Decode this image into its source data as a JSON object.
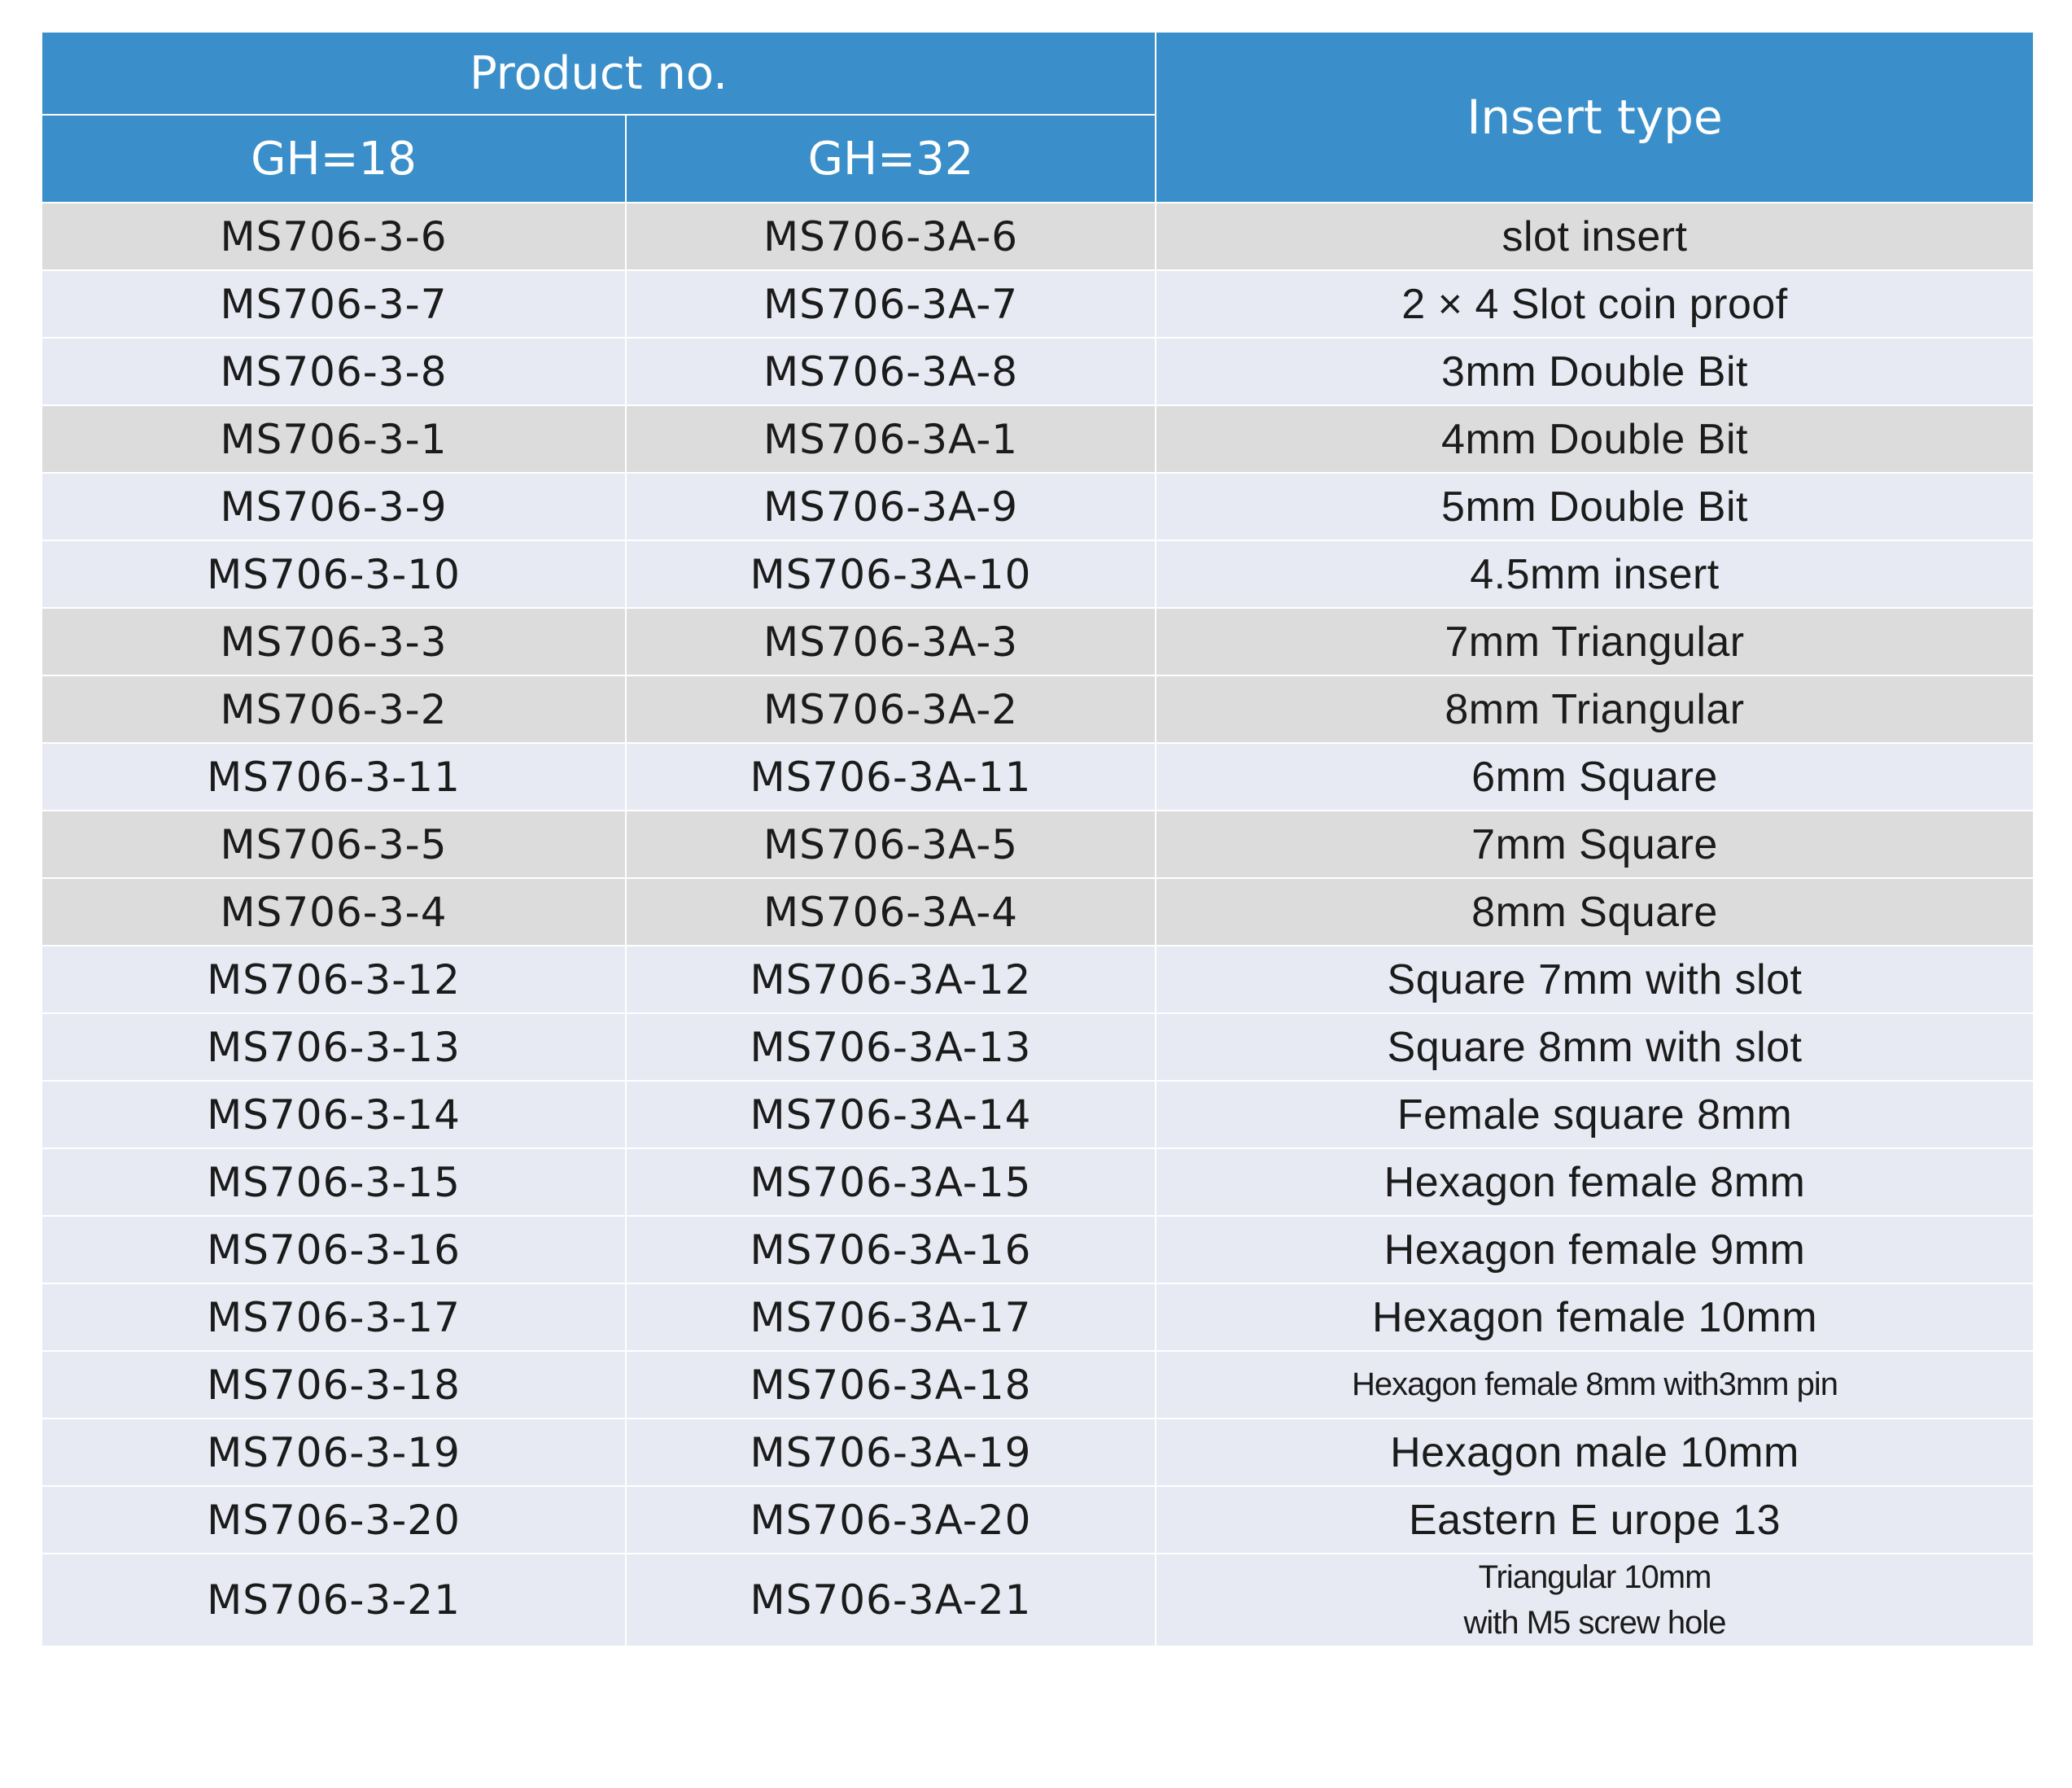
{
  "header": {
    "product_no": "Product no.",
    "insert_type": "Insert type",
    "gh18": "GH=18",
    "gh32": "GH=32"
  },
  "colors": {
    "header_bg": "#3a8fca",
    "header_text": "#ffffff",
    "row_gray": "#dcdcdc",
    "row_blue": "#e7eaf3"
  },
  "rows": [
    {
      "gh18": "MS706-3-6",
      "gh32": "MS706-3A-6",
      "insert": "slot insert",
      "shade": "gray"
    },
    {
      "gh18": "MS706-3-7",
      "gh32": "MS706-3A-7",
      "insert": "2 × 4 Slot coin proof",
      "shade": "blue"
    },
    {
      "gh18": "MS706-3-8",
      "gh32": "MS706-3A-8",
      "insert": "3mm Double Bit",
      "shade": "blue"
    },
    {
      "gh18": "MS706-3-1",
      "gh32": "MS706-3A-1",
      "insert": "4mm Double Bit",
      "shade": "gray"
    },
    {
      "gh18": "MS706-3-9",
      "gh32": "MS706-3A-9",
      "insert": "5mm Double Bit",
      "shade": "blue"
    },
    {
      "gh18": "MS706-3-10",
      "gh32": "MS706-3A-10",
      "insert": "4.5mm  insert",
      "shade": "blue"
    },
    {
      "gh18": "MS706-3-3",
      "gh32": "MS706-3A-3",
      "insert": "7mm Triangular",
      "shade": "gray"
    },
    {
      "gh18": "MS706-3-2",
      "gh32": "MS706-3A-2",
      "insert": "8mm Triangular",
      "shade": "gray"
    },
    {
      "gh18": "MS706-3-11",
      "gh32": "MS706-3A-11",
      "insert": "6mm Square",
      "shade": "blue"
    },
    {
      "gh18": "MS706-3-5",
      "gh32": "MS706-3A-5",
      "insert": "7mm Square",
      "shade": "gray"
    },
    {
      "gh18": "MS706-3-4",
      "gh32": "MS706-3A-4",
      "insert": "8mm Square",
      "shade": "gray"
    },
    {
      "gh18": "MS706-3-12",
      "gh32": "MS706-3A-12",
      "insert": "Square 7mm with slot",
      "shade": "blue"
    },
    {
      "gh18": "MS706-3-13",
      "gh32": "MS706-3A-13",
      "insert": "Square 8mm with slot",
      "shade": "blue"
    },
    {
      "gh18": "MS706-3-14",
      "gh32": "MS706-3A-14",
      "insert": "Female square 8mm",
      "shade": "blue"
    },
    {
      "gh18": "MS706-3-15",
      "gh32": "MS706-3A-15",
      "insert": "Hexagon female 8mm",
      "shade": "blue"
    },
    {
      "gh18": "MS706-3-16",
      "gh32": "MS706-3A-16",
      "insert": "Hexagon female 9mm",
      "shade": "blue"
    },
    {
      "gh18": "MS706-3-17",
      "gh32": "MS706-3A-17",
      "insert": "Hexagon female 10mm",
      "shade": "blue"
    },
    {
      "gh18": "MS706-3-18",
      "gh32": "MS706-3A-18",
      "insert": "Hexagon female 8mm with3mm pin",
      "shade": "blue"
    },
    {
      "gh18": "MS706-3-19",
      "gh32": "MS706-3A-19",
      "insert": "Hexagon male 10mm",
      "shade": "blue"
    },
    {
      "gh18": "MS706-3-20",
      "gh32": "MS706-3A-20",
      "insert": "Eastern E urope     13",
      "shade": "blue"
    },
    {
      "gh18": "MS706-3-21",
      "gh32": "MS706-3A-21",
      "insert": "Triangular   10mm\nwith M5 screw hole",
      "shade": "blue"
    }
  ]
}
